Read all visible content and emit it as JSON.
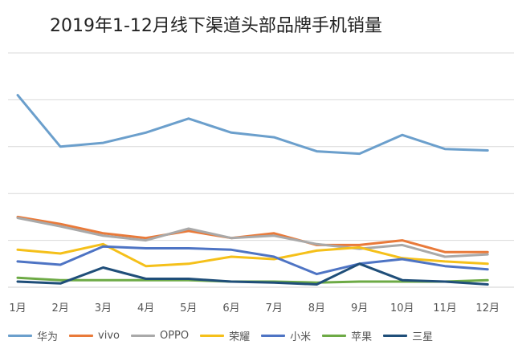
{
  "chart_data": {
    "type": "line",
    "title": "2019年1-12月线下渠道头部品牌手机销量",
    "xlabel": "",
    "ylabel": "",
    "categories": [
      "1月",
      "2月",
      "3月",
      "4月",
      "5月",
      "6月",
      "7月",
      "8月",
      "9月",
      "10月",
      "11月",
      "12月"
    ],
    "ylim": [
      0,
      5
    ],
    "grid": true,
    "legend_position": "bottom",
    "series": [
      {
        "name": "华为",
        "color": "#6b9fcc",
        "values": [
          4.1,
          3.0,
          3.08,
          3.3,
          3.6,
          3.3,
          3.2,
          2.9,
          2.85,
          3.25,
          2.95,
          2.92
        ]
      },
      {
        "name": "vivo",
        "color": "#e97a3a",
        "values": [
          1.5,
          1.35,
          1.15,
          1.05,
          1.2,
          1.05,
          1.15,
          0.9,
          0.9,
          1.0,
          0.75,
          0.75
        ]
      },
      {
        "name": "OPPO",
        "color": "#a9a9a9",
        "values": [
          1.48,
          1.3,
          1.1,
          1.0,
          1.25,
          1.05,
          1.1,
          0.92,
          0.82,
          0.9,
          0.65,
          0.7
        ]
      },
      {
        "name": "荣耀",
        "color": "#f5c01a",
        "values": [
          0.8,
          0.72,
          0.92,
          0.45,
          0.5,
          0.65,
          0.6,
          0.78,
          0.85,
          0.62,
          0.55,
          0.5
        ]
      },
      {
        "name": "小米",
        "color": "#4e74c4",
        "values": [
          0.55,
          0.48,
          0.87,
          0.83,
          0.83,
          0.8,
          0.65,
          0.28,
          0.5,
          0.6,
          0.45,
          0.38
        ]
      },
      {
        "name": "苹果",
        "color": "#6daa45",
        "values": [
          0.2,
          0.15,
          0.15,
          0.15,
          0.15,
          0.12,
          0.12,
          0.1,
          0.12,
          0.12,
          0.12,
          0.15
        ]
      },
      {
        "name": "三星",
        "color": "#1f4e79",
        "values": [
          0.12,
          0.08,
          0.42,
          0.18,
          0.18,
          0.12,
          0.1,
          0.06,
          0.5,
          0.15,
          0.12,
          0.06
        ]
      }
    ]
  }
}
